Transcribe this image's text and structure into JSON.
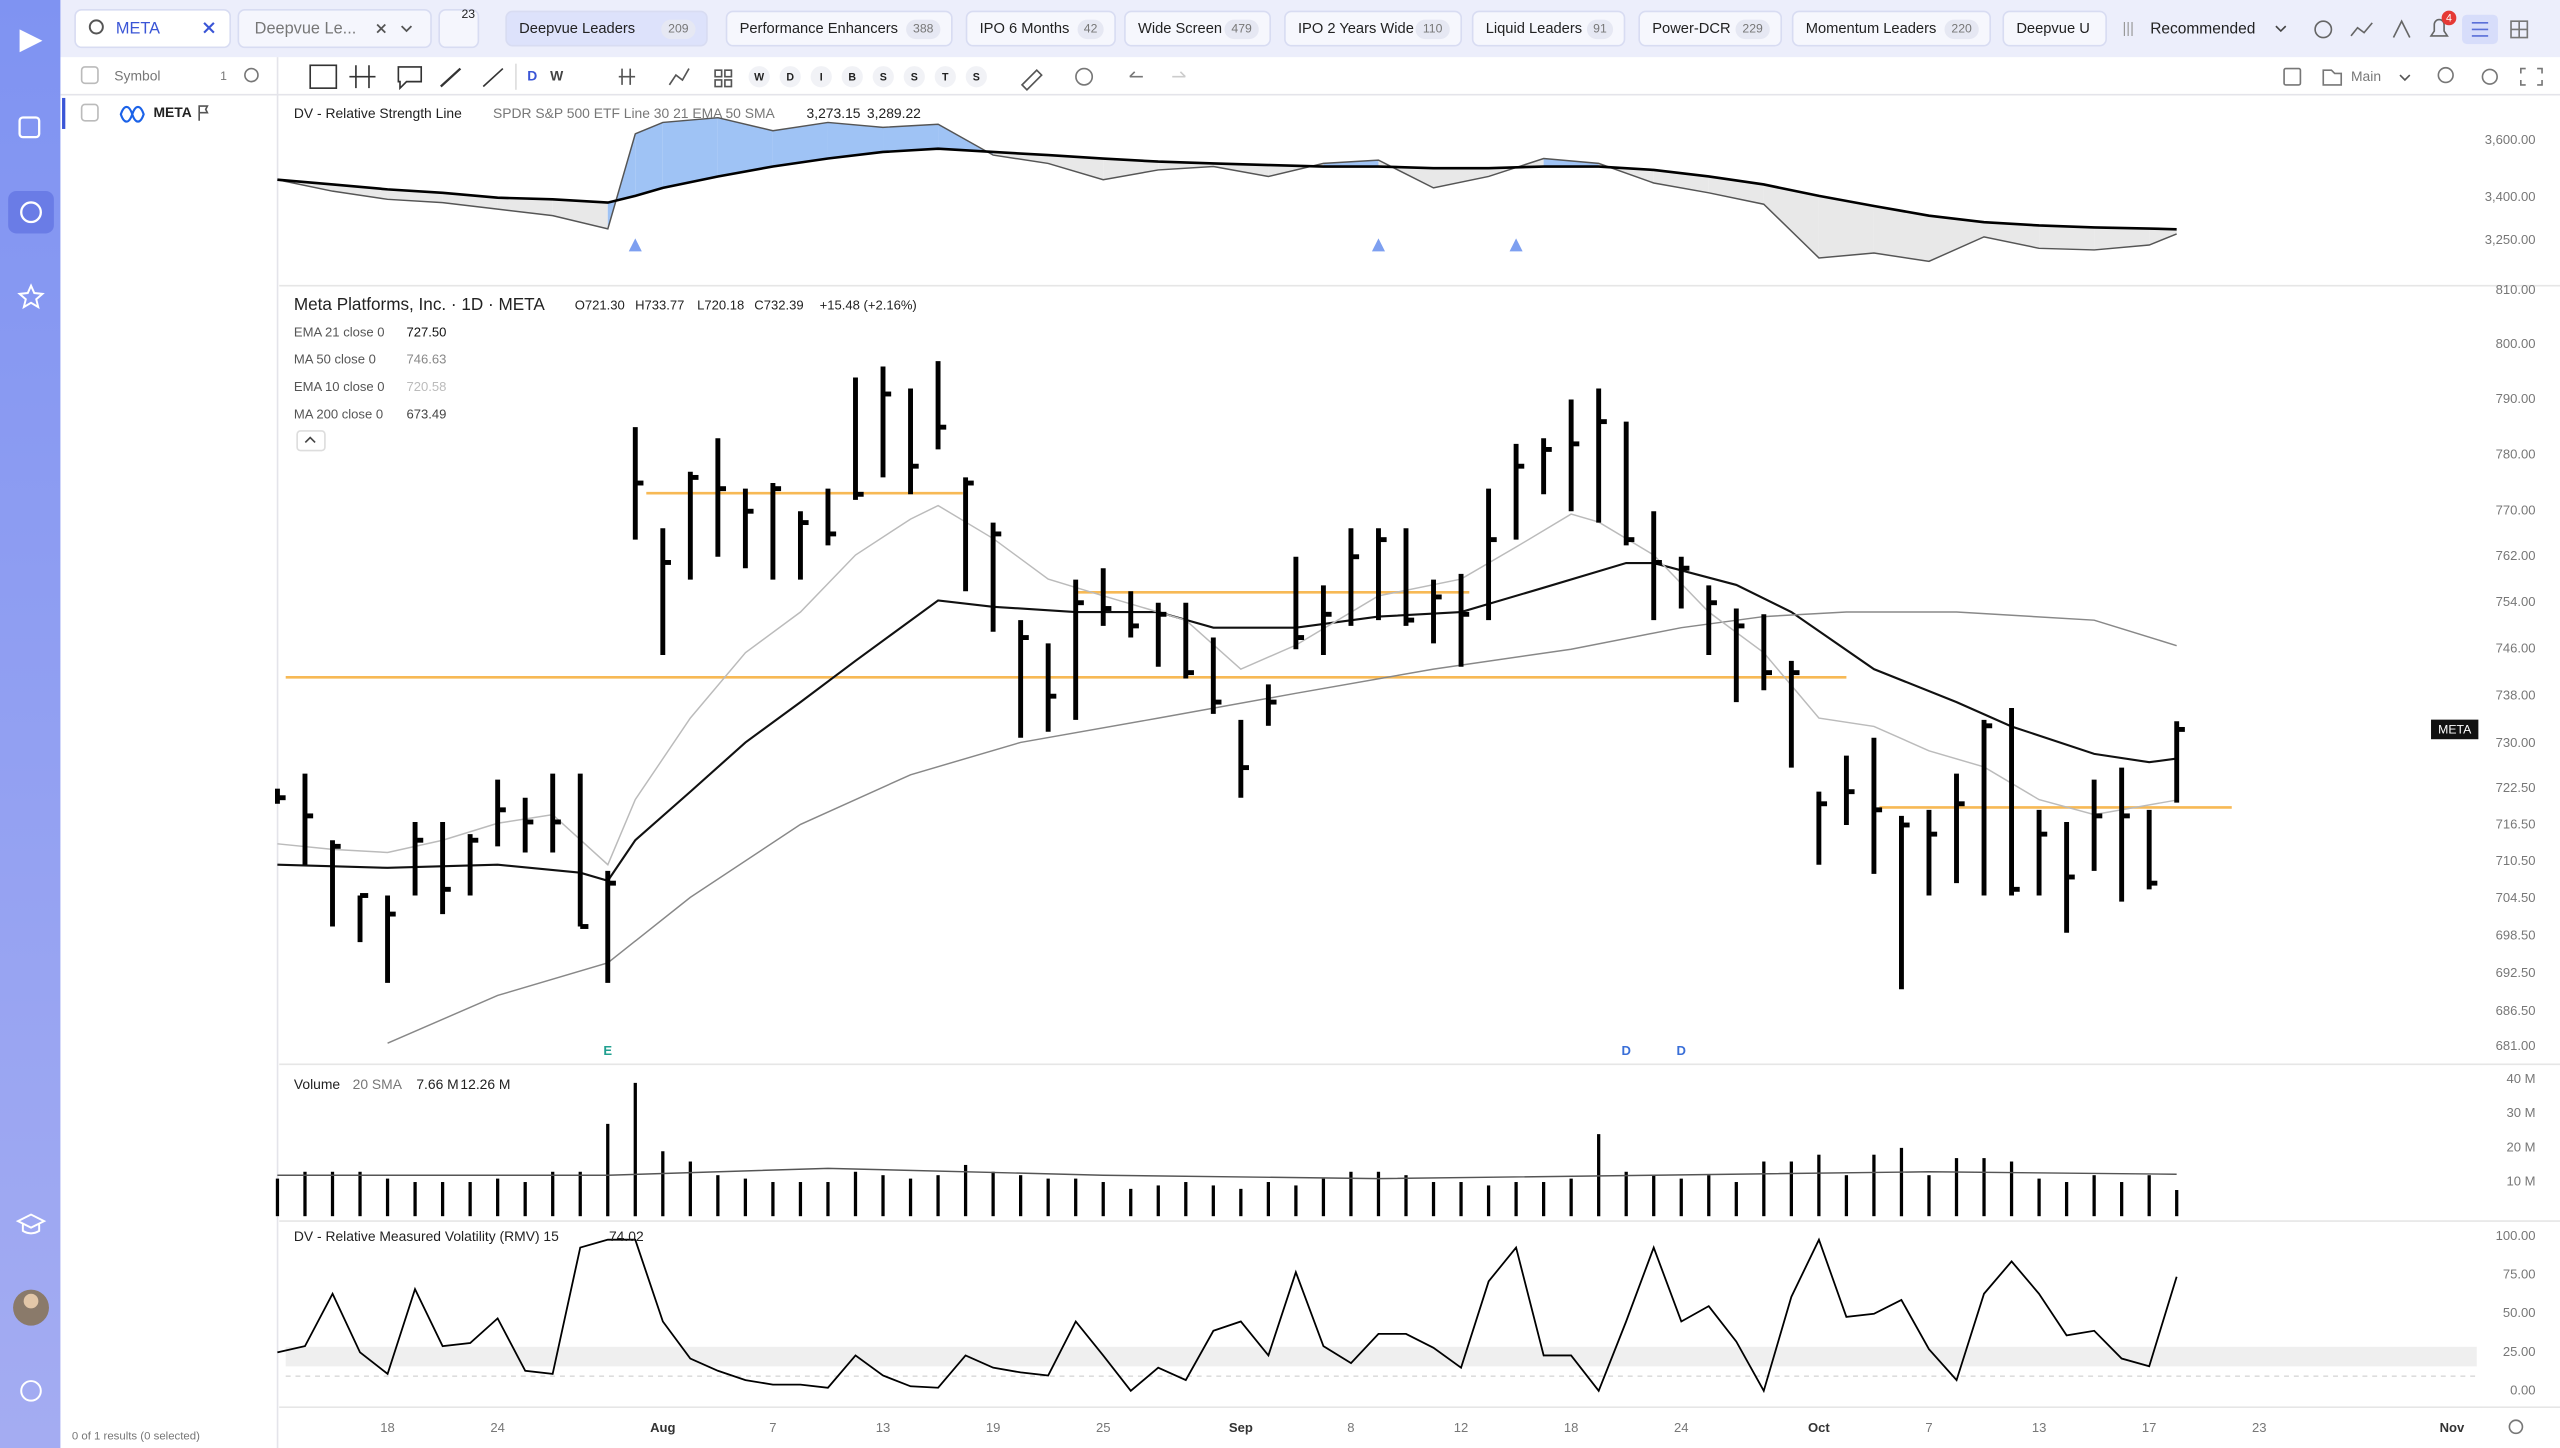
{
  "header": {
    "search": "META",
    "watchlist": "Deepvue Le...",
    "watchlist_badge": 23,
    "tabs": [
      {
        "label": "Deepvue Leaders",
        "count": 209
      },
      {
        "label": "Performance Enhancers",
        "count": 388
      },
      {
        "label": "IPO 6 Months",
        "count": 42
      },
      {
        "label": "Wide Screen",
        "count": 479
      },
      {
        "label": "IPO 2 Years Wide",
        "count": 110
      },
      {
        "label": "Liquid Leaders",
        "count": 91
      },
      {
        "label": "Power-DCR",
        "count": 229
      },
      {
        "label": "Momentum Leaders",
        "count": 220
      },
      {
        "label": "Deepvue U"
      }
    ],
    "sort": "Recommended",
    "notifications": 4
  },
  "toolbar": {
    "symbol_header": "Symbol",
    "symbol_count": 1,
    "timeframes": [
      "D",
      "W"
    ],
    "quick_buttons": [
      "W",
      "D",
      "I",
      "B",
      "S",
      "S",
      "T",
      "S"
    ],
    "layout": "Main"
  },
  "watchlist": {
    "rows": [
      "META"
    ],
    "footer": "0 of 1 results (0 selected)"
  },
  "chart_data": [
    {
      "type": "line",
      "title": "DV - Relative Strength Line",
      "subtitle": "SPDR S&P 500 ETF Line 30 21 EMA 50 SMA",
      "x": [
        0,
        2,
        4,
        6,
        8,
        10,
        12,
        13,
        14,
        16,
        18,
        20,
        22,
        24,
        26,
        28,
        30,
        32,
        34,
        36,
        38,
        40,
        42,
        44,
        46,
        48,
        50,
        52,
        54,
        56,
        58,
        60,
        62,
        64,
        66,
        68,
        69
      ],
      "series": [
        {
          "color": "#555555",
          "value_label": "3,273.15",
          "values": [
            3463,
            3423,
            3394,
            3383,
            3360,
            3337,
            3291,
            3623,
            3663,
            3680,
            3634,
            3663,
            3646,
            3657,
            3549,
            3520,
            3463,
            3497,
            3509,
            3474,
            3520,
            3531,
            3434,
            3474,
            3537,
            3520,
            3451,
            3417,
            3377,
            3189,
            3206,
            3177,
            3263,
            3223,
            3217,
            3234,
            3273.15
          ]
        },
        {
          "color": "#000000",
          "value_label": "3,289.22",
          "values": [
            3463,
            3446,
            3429,
            3417,
            3400,
            3394,
            3383,
            3406,
            3434,
            3474,
            3509,
            3537,
            3560,
            3571,
            3560,
            3549,
            3537,
            3526,
            3520,
            3514,
            3509,
            3509,
            3503,
            3503,
            3509,
            3509,
            3497,
            3474,
            3446,
            3406,
            3371,
            3337,
            3314,
            3303,
            3296,
            3292,
            3289.22
          ]
        }
      ],
      "fill_above": "#9fc3f5",
      "fill_below": "#e8e8e8",
      "signals": [
        13,
        40,
        45
      ],
      "signal_color": "#7d9ff0",
      "ylim": [
        3109,
        3749
      ],
      "yticks": [
        {
          "value": 3600,
          "label": "3,600.00"
        },
        {
          "value": 3400,
          "label": "3,400.00"
        },
        {
          "value": 3250,
          "label": "3,250.00"
        }
      ]
    },
    {
      "type": "ohlc",
      "title": "Meta Platforms, Inc. · 1D · META",
      "ohlc_labels": [
        "O721.30",
        "H733.77",
        "L720.18",
        "C732.39",
        "+15.48 (+2.16%)"
      ],
      "color": "#000000",
      "log_scale": true,
      "high": [
        722.5,
        725,
        714,
        705,
        705,
        717,
        717,
        715,
        724,
        721,
        725,
        725,
        709,
        785,
        767,
        777,
        783,
        774,
        775,
        770,
        774,
        794,
        796,
        792,
        797,
        776,
        768,
        751,
        747,
        758,
        760,
        756,
        754,
        754,
        748,
        734,
        740,
        762,
        757,
        767,
        767,
        767,
        758,
        759,
        774,
        782,
        783,
        790,
        792,
        786,
        770,
        762,
        757,
        753,
        752,
        744,
        722,
        728,
        731,
        718,
        719,
        725,
        734,
        736,
        719,
        717,
        724,
        726,
        719,
        733.77
      ],
      "low": [
        720,
        710,
        700,
        697.5,
        691,
        705,
        702,
        705,
        713,
        712,
        712,
        700,
        691,
        765,
        745,
        758,
        762,
        760,
        758,
        758,
        764,
        772,
        776,
        773,
        781,
        756,
        749,
        731,
        732,
        734,
        750,
        748,
        743,
        741,
        735,
        721,
        733,
        746,
        745,
        750,
        751,
        750,
        747,
        743,
        751,
        765,
        773,
        770,
        768,
        764,
        751,
        753,
        745,
        737,
        739,
        726,
        710,
        716.5,
        708.5,
        690,
        705,
        707,
        705,
        705,
        705,
        699,
        709,
        704,
        706,
        720.18
      ],
      "close": [
        721,
        718,
        713,
        705,
        702,
        714,
        706,
        714,
        719,
        717,
        717,
        700,
        707,
        775,
        761,
        776,
        774,
        770,
        774,
        768,
        766,
        773,
        791,
        778,
        785,
        775,
        766,
        748,
        738,
        754,
        753,
        750,
        752,
        742,
        737,
        726,
        737,
        748,
        752,
        762,
        765,
        751,
        755,
        752,
        765,
        778,
        781,
        782,
        786,
        765,
        761,
        760,
        754,
        750,
        742,
        742,
        720,
        722,
        719,
        716.5,
        715,
        720,
        733,
        706,
        715,
        708,
        718,
        718,
        707,
        732.39
      ],
      "indicators": [
        {
          "name": "EMA 21 close 0",
          "value": "727.50",
          "color": "#111111",
          "x": [
            0,
            4,
            8,
            11,
            12,
            13,
            15,
            17,
            19,
            21,
            24,
            26,
            29,
            32,
            34,
            37,
            40,
            43,
            46,
            49,
            50,
            53,
            55,
            58,
            61,
            63,
            66,
            68,
            69
          ],
          "values": [
            710.0,
            709.5,
            710.0,
            708.7,
            707.4,
            714.0,
            722.0,
            730.2,
            737.0,
            744.0,
            754.4,
            753.3,
            752.4,
            752.4,
            749.7,
            749.7,
            751.6,
            752.4,
            756.6,
            760.9,
            760.9,
            757.1,
            752.4,
            742.6,
            737.0,
            732.9,
            728.3,
            726.9,
            727.5
          ]
        },
        {
          "name": "MA 50 close 0",
          "value": "746.63",
          "color": "#888888",
          "x": [
            4,
            8,
            12,
            15,
            19,
            23,
            27,
            32,
            37,
            42,
            47,
            51,
            54,
            57,
            61,
            66,
            69
          ],
          "values": [
            681.5,
            689.0,
            694.2,
            704.7,
            716.6,
            724.8,
            730.2,
            734.3,
            738.5,
            742.6,
            746.0,
            749.7,
            751.6,
            752.4,
            752.4,
            751.0,
            746.6
          ]
        },
        {
          "name": "EMA 10 close 0",
          "value": "720.58",
          "color": "#bbbbbb",
          "x": [
            0,
            2,
            4,
            6,
            8,
            10,
            12,
            13,
            15,
            17,
            19,
            21,
            23,
            24,
            26,
            28,
            30,
            33,
            35,
            37,
            40,
            43,
            45,
            47,
            48,
            50,
            52,
            54,
            56,
            58,
            60,
            62,
            64,
            66,
            69
          ],
          "values": [
            713.4,
            712.5,
            712.0,
            714.0,
            716.8,
            718.2,
            710.0,
            720.7,
            734.3,
            745.4,
            752.4,
            762.3,
            768.6,
            771.0,
            765.2,
            758.1,
            755.2,
            751.0,
            742.6,
            746.7,
            755.2,
            758.1,
            763.7,
            769.5,
            768.1,
            762.3,
            752.4,
            745.4,
            734.3,
            732.9,
            728.8,
            726.1,
            720.7,
            718.2,
            720.6
          ]
        },
        {
          "name": "MA 200 close 0",
          "value": "673.49",
          "color": "#444444"
        }
      ],
      "levels": [
        {
          "value": 741.2,
          "x": [
            0.3,
            57
          ]
        },
        {
          "value": 773.2,
          "x": [
            13.4,
            24.9
          ]
        },
        {
          "value": 755.8,
          "x": [
            29,
            43.3
          ]
        },
        {
          "value": 719.4,
          "x": [
            58.2,
            71
          ]
        }
      ],
      "level_color": "#f7b955",
      "events": [
        {
          "x": 12,
          "label": "E",
          "color": "#21a090"
        },
        {
          "x": 49,
          "label": "D",
          "color": "#3a6fd8"
        },
        {
          "x": 51,
          "label": "D",
          "color": "#3a6fd8"
        }
      ],
      "price_tag": "META",
      "ylim": [
        681,
        810
      ],
      "yticks": [
        {
          "value": 810,
          "label": "810.00"
        },
        {
          "value": 800,
          "label": "800.00"
        },
        {
          "value": 790,
          "label": "790.00"
        },
        {
          "value": 780,
          "label": "780.00"
        },
        {
          "value": 770,
          "label": "770.00"
        },
        {
          "value": 762,
          "label": "762.00"
        },
        {
          "value": 754,
          "label": "754.00"
        },
        {
          "value": 746,
          "label": "746.00"
        },
        {
          "value": 738,
          "label": "738.00"
        },
        {
          "value": 730,
          "label": "730.00"
        },
        {
          "value": 722.5,
          "label": "722.50"
        },
        {
          "value": 716.5,
          "label": "716.50"
        },
        {
          "value": 710.5,
          "label": "710.50"
        },
        {
          "value": 704.5,
          "label": "704.50"
        },
        {
          "value": 698.5,
          "label": "698.50"
        },
        {
          "value": 692.5,
          "label": "692.50"
        },
        {
          "value": 686.5,
          "label": "686.50"
        },
        {
          "value": 681,
          "label": "681.00"
        }
      ]
    },
    {
      "type": "bar",
      "title": "Volume",
      "subtitle": "20 SMA",
      "value_label": "7.66 M",
      "color": "#000000",
      "values": [
        11,
        13,
        13,
        13,
        11,
        10,
        10,
        10,
        11,
        10,
        13,
        13,
        27,
        39,
        19,
        16,
        12,
        11,
        10,
        10,
        10,
        13,
        12,
        11,
        12,
        15,
        13,
        12,
        11,
        11,
        10,
        8,
        9,
        10,
        9,
        8,
        10,
        9,
        11,
        13,
        13,
        12,
        10,
        10,
        9,
        10,
        10,
        11,
        24,
        13,
        12,
        11,
        12,
        10,
        16,
        16,
        18,
        12,
        18,
        20,
        12,
        17,
        17,
        16,
        11,
        10,
        12,
        10,
        12,
        7.66
      ],
      "sma": {
        "value_label": "12.26 M",
        "color": "#555555",
        "x": [
          0,
          12,
          20,
          30,
          40,
          50,
          60,
          69
        ],
        "values": [
          12,
          12,
          14,
          12,
          11,
          12,
          13,
          12.26
        ]
      },
      "ylim": [
        0,
        43
      ],
      "yticks": [
        {
          "value": 40,
          "label": "40 M"
        },
        {
          "value": 30,
          "label": "30 M"
        },
        {
          "value": 20,
          "label": "20 M"
        },
        {
          "value": 10,
          "label": "10 M"
        }
      ]
    },
    {
      "type": "line",
      "title": "DV - Relative Measured Volatility (RMV) 15",
      "value_label": "74.02",
      "color": "#000000",
      "values": [
        25,
        29,
        63,
        25,
        11,
        66,
        29,
        31,
        47,
        13,
        11,
        93,
        98,
        98,
        45,
        21,
        13,
        7,
        4,
        4,
        2,
        23,
        10,
        3,
        2,
        23,
        15,
        12,
        10,
        45,
        23,
        0,
        15,
        7,
        39,
        45,
        23,
        77,
        29,
        18,
        37,
        37,
        28,
        15,
        71,
        93,
        23,
        23,
        0,
        45,
        93,
        45,
        55,
        32,
        0,
        61,
        98,
        48,
        50,
        59,
        27,
        7,
        63,
        84,
        63,
        36,
        39,
        21,
        16,
        74.02
      ],
      "ylim": [
        0,
        108
      ],
      "yticks": [
        {
          "value": 100,
          "label": "100.00"
        },
        {
          "value": 75,
          "label": "75.00"
        },
        {
          "value": 50,
          "label": "50.00"
        },
        {
          "value": 25,
          "label": "25.00"
        },
        {
          "value": 0,
          "label": "0.00"
        }
      ],
      "xlim": [
        0.3,
        79.9
      ],
      "xticks": [
        {
          "value": 4,
          "label": "18"
        },
        {
          "value": 8,
          "label": "24"
        },
        {
          "value": 14,
          "label": "Aug"
        },
        {
          "value": 18,
          "label": "7"
        },
        {
          "value": 22,
          "label": "13"
        },
        {
          "value": 26,
          "label": "19"
        },
        {
          "value": 30,
          "label": "25"
        },
        {
          "value": 35,
          "label": "Sep"
        },
        {
          "value": 39,
          "label": "8"
        },
        {
          "value": 43,
          "label": "12"
        },
        {
          "value": 47,
          "label": "18"
        },
        {
          "value": 51,
          "label": "24"
        },
        {
          "value": 56,
          "label": "Oct"
        },
        {
          "value": 60,
          "label": "7"
        },
        {
          "value": 64,
          "label": "13"
        },
        {
          "value": 68,
          "label": "17"
        },
        {
          "value": 72,
          "label": "23"
        },
        {
          "value": 79,
          "label": "Nov"
        }
      ]
    }
  ]
}
